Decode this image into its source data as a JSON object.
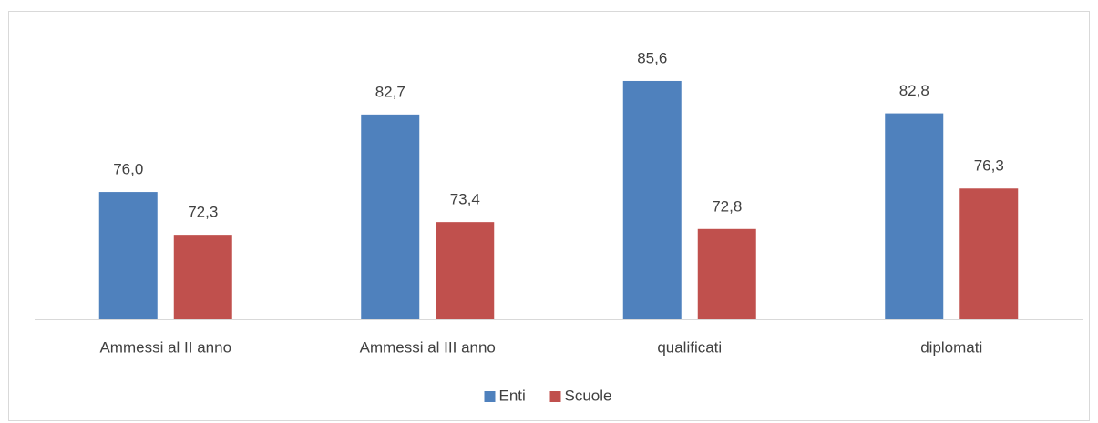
{
  "chart_data": {
    "type": "bar",
    "categories": [
      "Ammessi al II anno",
      "Ammessi al III anno",
      "qualificati",
      "diplomati"
    ],
    "series": [
      {
        "name": "Enti",
        "color": "#4f81bd",
        "values": [
          76.0,
          82.7,
          85.6,
          82.8
        ],
        "value_labels": [
          "76,0",
          "82,7",
          "85,6",
          "82,8"
        ]
      },
      {
        "name": "Scuole",
        "color": "#c0504d",
        "values": [
          72.3,
          73.4,
          72.8,
          76.3
        ],
        "value_labels": [
          "72,3",
          "73,4",
          "72,8",
          "76,3"
        ]
      }
    ],
    "ylim": [
      65,
      90
    ],
    "legend": "bottom"
  }
}
